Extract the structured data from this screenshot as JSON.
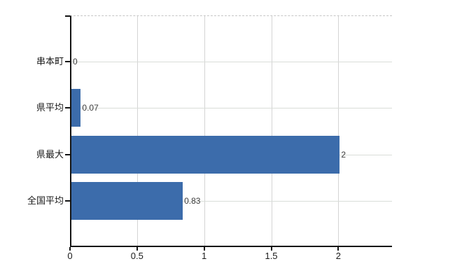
{
  "chart_data": {
    "type": "bar",
    "orientation": "horizontal",
    "title": "",
    "xlabel": "",
    "ylabel": "",
    "categories": [
      "串本町",
      "県平均",
      "県最大",
      "全国平均"
    ],
    "values": [
      0,
      0.07,
      2,
      0.83
    ],
    "data_labels": [
      "0",
      "0.07",
      "2",
      "0.83"
    ],
    "x_ticks": [
      0,
      0.5,
      1,
      1.5,
      2
    ],
    "x_tick_labels": [
      "0",
      "0.5",
      "1",
      "1.5",
      "2"
    ],
    "xlim": [
      0,
      2.4
    ],
    "grid": true,
    "legend": "none",
    "bar_color": "#3c6cab"
  },
  "colors": {
    "background": "#ffffff",
    "bar": "#3c6cab",
    "gridline_horizontal": "#d9ddd8",
    "gridline_vertical": "#d4d4d4",
    "axis": "#141414",
    "plot_top_border": "#c6c6c6",
    "category_label": "#1a1a1a",
    "tick_label": "#1a1a1a",
    "data_label": "#3c3c3c"
  }
}
